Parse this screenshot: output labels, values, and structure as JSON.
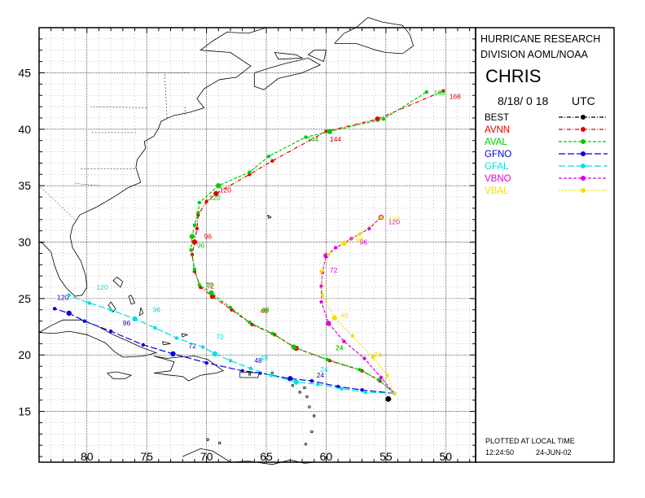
{
  "header": {
    "org_line1": "HURRICANE RESEARCH",
    "org_line2": "DIVISION AOML/NOAA",
    "storm_name": "CHRIS",
    "init_time": "8/18/ 0 18",
    "time_zone": "UTC"
  },
  "footer": {
    "note": "PLOTTED AT LOCAL TIME",
    "time": "12:24:50",
    "date": "24-JUN-02"
  },
  "axes": {
    "lat_ticks": [
      {
        "value": 45,
        "label": "45"
      },
      {
        "value": 40,
        "label": "40"
      },
      {
        "value": 35,
        "label": "35"
      },
      {
        "value": 30,
        "label": "30"
      },
      {
        "value": 25,
        "label": "25"
      },
      {
        "value": 20,
        "label": "20"
      },
      {
        "value": 15,
        "label": "15"
      }
    ],
    "lon_ticks": [
      {
        "value": 80,
        "label": "80"
      },
      {
        "value": 75,
        "label": "75"
      },
      {
        "value": 70,
        "label": "70"
      },
      {
        "value": 65,
        "label": "65"
      },
      {
        "value": 60,
        "label": "60"
      },
      {
        "value": 55,
        "label": "55"
      },
      {
        "value": 50,
        "label": "50"
      }
    ],
    "lon_range": [
      84,
      47.5
    ],
    "lat_range": [
      10.5,
      49
    ],
    "grid": true
  },
  "chart_data": {
    "type": "map-track",
    "legend": [
      {
        "name": "BEST",
        "color": "#000000",
        "dash": "dashdot"
      },
      {
        "name": "AVNN",
        "color": "#e00000",
        "dash": "dashdot"
      },
      {
        "name": "AVAL",
        "color": "#00cc00",
        "dash": "dashed"
      },
      {
        "name": "GFNO",
        "color": "#0000e0",
        "dash": "longdash"
      },
      {
        "name": "GFAL",
        "color": "#00e0e0",
        "dash": "longdash"
      },
      {
        "name": "VBNO",
        "color": "#e000e0",
        "dash": "dashed"
      },
      {
        "name": "VBAL",
        "color": "#f0e000",
        "dash": "dotted"
      }
    ],
    "best": {
      "lon": 54.8,
      "lat": 16.1
    },
    "series": [
      {
        "name": "AVNN",
        "color": "#e00000",
        "points": [
          [
            54.3,
            16.6
          ],
          [
            55.5,
            17.7
          ],
          [
            57.0,
            18.6
          ],
          [
            59.7,
            19.5
          ],
          [
            62.5,
            20.6
          ],
          [
            64.3,
            21.8
          ],
          [
            66.2,
            22.7
          ],
          [
            67.9,
            24.0
          ],
          [
            69.5,
            25.2
          ],
          [
            70.5,
            26.0
          ],
          [
            71.0,
            27.4
          ],
          [
            71.2,
            28.9
          ],
          [
            71.0,
            30.0
          ],
          [
            70.8,
            31.2
          ],
          [
            70.7,
            32.4
          ],
          [
            70.0,
            33.6
          ],
          [
            69.2,
            34.3
          ],
          [
            66.4,
            36.0
          ],
          [
            64.5,
            37.2
          ],
          [
            60.0,
            39.8
          ],
          [
            55.7,
            40.9
          ],
          [
            50.2,
            43.4
          ]
        ],
        "labels": [
          {
            "text": "24",
            "lon": 59.2,
            "lat": 20.4
          },
          {
            "text": "48",
            "lon": 65.5,
            "lat": 23.7
          },
          {
            "text": "72",
            "lon": 70.0,
            "lat": 25.9
          },
          {
            "text": "96",
            "lon": 70.2,
            "lat": 30.3
          },
          {
            "text": "120",
            "lon": 68.9,
            "lat": 34.4
          },
          {
            "text": "144",
            "lon": 59.7,
            "lat": 38.9
          },
          {
            "text": "168",
            "lon": 49.7,
            "lat": 42.7
          }
        ]
      },
      {
        "name": "AVAL",
        "color": "#00cc00",
        "points": [
          [
            54.3,
            16.6
          ],
          [
            55.6,
            17.8
          ],
          [
            57.2,
            18.7
          ],
          [
            59.9,
            19.6
          ],
          [
            62.7,
            20.7
          ],
          [
            64.5,
            21.9
          ],
          [
            66.4,
            22.9
          ],
          [
            68.0,
            24.2
          ],
          [
            69.6,
            25.5
          ],
          [
            70.6,
            26.2
          ],
          [
            71.0,
            27.6
          ],
          [
            71.3,
            29.3
          ],
          [
            71.2,
            30.5
          ],
          [
            71.0,
            31.5
          ],
          [
            70.7,
            32.6
          ],
          [
            70.6,
            33.5
          ],
          [
            69.0,
            35.0
          ],
          [
            66.4,
            36.2
          ],
          [
            64.8,
            37.6
          ],
          [
            61.7,
            39.3
          ],
          [
            59.7,
            39.8
          ],
          [
            55.2,
            40.9
          ],
          [
            51.6,
            43.3
          ]
        ],
        "labels": [
          {
            "text": "24",
            "lon": 59.2,
            "lat": 20.4
          },
          {
            "text": "48",
            "lon": 65.4,
            "lat": 23.8
          },
          {
            "text": "72",
            "lon": 70.1,
            "lat": 26.0
          },
          {
            "text": "96",
            "lon": 70.8,
            "lat": 29.5
          },
          {
            "text": "120",
            "lon": 69.8,
            "lat": 33.7
          },
          {
            "text": "144",
            "lon": 61.6,
            "lat": 38.9
          },
          {
            "text": "168",
            "lon": 51.0,
            "lat": 43.0
          }
        ]
      },
      {
        "name": "GFNO",
        "color": "#0000e0",
        "points": [
          [
            54.3,
            16.6
          ],
          [
            57.0,
            16.9
          ],
          [
            59.0,
            17.2
          ],
          [
            61.2,
            17.7
          ],
          [
            63.0,
            17.9
          ],
          [
            65.5,
            18.4
          ],
          [
            67.0,
            18.6
          ],
          [
            70.0,
            19.3
          ],
          [
            72.8,
            20.1
          ],
          [
            75.3,
            20.9
          ],
          [
            78.0,
            22.1
          ],
          [
            80.2,
            23.0
          ],
          [
            81.5,
            23.7
          ],
          [
            82.7,
            24.1
          ]
        ],
        "labels": [
          {
            "text": "24",
            "lon": 60.8,
            "lat": 18.0
          },
          {
            "text": "48",
            "lon": 66.0,
            "lat": 19.3
          },
          {
            "text": "72",
            "lon": 71.5,
            "lat": 20.6
          },
          {
            "text": "96",
            "lon": 77.0,
            "lat": 22.6
          },
          {
            "text": "120",
            "lon": 82.5,
            "lat": 24.9
          }
        ]
      },
      {
        "name": "GFAL",
        "color": "#00e0e0",
        "points": [
          [
            54.3,
            16.6
          ],
          [
            56.7,
            16.7
          ],
          [
            58.7,
            17.0
          ],
          [
            60.7,
            17.4
          ],
          [
            62.5,
            17.6
          ],
          [
            64.6,
            18.2
          ],
          [
            66.3,
            18.8
          ],
          [
            68.0,
            19.5
          ],
          [
            69.3,
            20.1
          ],
          [
            70.3,
            20.7
          ],
          [
            72.5,
            21.5
          ],
          [
            74.3,
            22.4
          ],
          [
            76.0,
            23.2
          ],
          [
            78.0,
            24.0
          ],
          [
            79.8,
            24.6
          ],
          [
            81.5,
            25.3
          ]
        ],
        "labels": [
          {
            "text": "24",
            "lon": 60.5,
            "lat": 18.5
          },
          {
            "text": "48",
            "lon": 65.5,
            "lat": 19.5
          },
          {
            "text": "72",
            "lon": 69.2,
            "lat": 21.4
          },
          {
            "text": "96",
            "lon": 74.5,
            "lat": 23.8
          },
          {
            "text": "120",
            "lon": 79.2,
            "lat": 25.8
          }
        ]
      },
      {
        "name": "VBNO",
        "color": "#e000e0",
        "points": [
          [
            54.3,
            16.6
          ],
          [
            55.4,
            18.0
          ],
          [
            56.8,
            19.7
          ],
          [
            58.5,
            21.2
          ],
          [
            59.8,
            22.8
          ],
          [
            60.4,
            24.7
          ],
          [
            60.4,
            26.1
          ],
          [
            60.3,
            27.3
          ],
          [
            60.0,
            28.8
          ],
          [
            59.2,
            29.5
          ],
          [
            57.9,
            30.3
          ],
          [
            56.4,
            31.2
          ],
          [
            55.4,
            32.2
          ]
        ],
        "labels": [
          {
            "text": "72",
            "lon": 59.7,
            "lat": 27.3
          },
          {
            "text": "96",
            "lon": 57.2,
            "lat": 29.8
          },
          {
            "text": "120",
            "lon": 54.8,
            "lat": 31.6
          }
        ]
      },
      {
        "name": "VBAL",
        "color": "#f0e000",
        "points": [
          [
            54.3,
            16.6
          ],
          [
            54.9,
            18.2
          ],
          [
            56.1,
            19.8
          ],
          [
            57.8,
            21.7
          ],
          [
            59.3,
            23.3
          ],
          [
            60.3,
            25.3
          ],
          [
            60.4,
            27.4
          ],
          [
            59.8,
            28.9
          ],
          [
            58.5,
            29.9
          ],
          [
            57.2,
            30.7
          ],
          [
            55.4,
            32.2
          ]
        ],
        "labels": [
          {
            "text": "24",
            "lon": 56.0,
            "lat": 19.8
          },
          {
            "text": "48",
            "lon": 58.8,
            "lat": 23.3
          },
          {
            "text": "96",
            "lon": 57.5,
            "lat": 30.0
          },
          {
            "text": "120",
            "lon": 54.8,
            "lat": 31.8
          }
        ]
      }
    ]
  }
}
